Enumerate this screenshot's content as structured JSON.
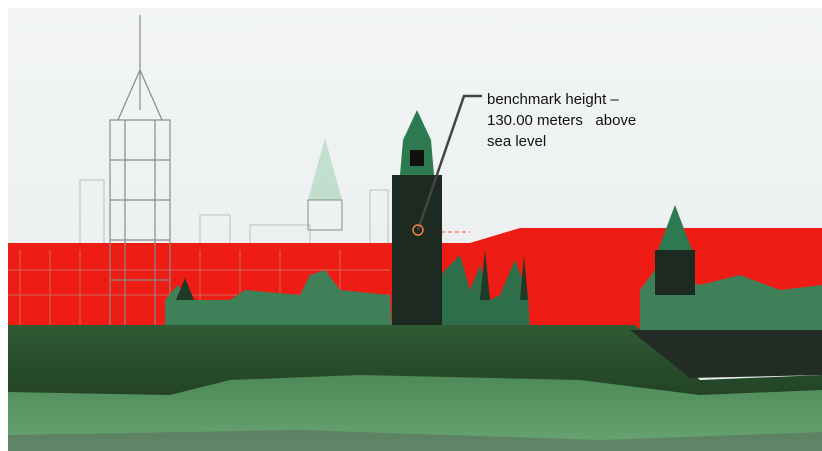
{
  "annotation": {
    "lines": [
      "benchmark height –",
      "130.00 meters   above",
      "sea level"
    ]
  }
}
